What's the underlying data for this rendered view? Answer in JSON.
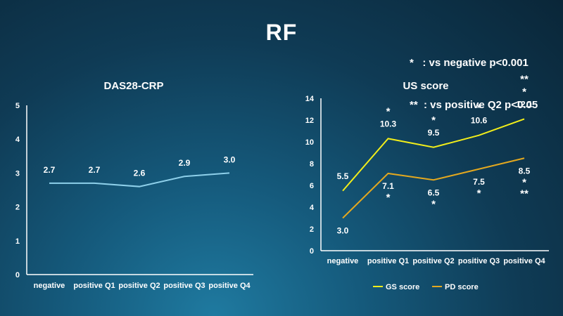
{
  "page_title": "RF",
  "significance_notes": [
    "*   : vs negative p<0.001",
    "**  : vs positive Q2 p<0.05"
  ],
  "chart_data": [
    {
      "type": "line",
      "title": "DAS28-CRP",
      "categories": [
        "negative",
        "positive Q1",
        "positive Q2",
        "positive Q3",
        "positive Q4"
      ],
      "ylim": [
        0,
        5
      ],
      "yticks": [
        0,
        1,
        2,
        3,
        4,
        5
      ],
      "grid": false,
      "series": [
        {
          "values": [
            2.7,
            2.7,
            2.6,
            2.9,
            3.0
          ],
          "labels": [
            "2.7",
            "2.7",
            "2.6",
            "2.9",
            "3.0"
          ],
          "color": "#8ed0ea",
          "markers": [
            "",
            "",
            "",
            "",
            ""
          ]
        }
      ]
    },
    {
      "type": "line",
      "title": "US score",
      "categories": [
        "negative",
        "positive Q1",
        "positive Q2",
        "positive Q3",
        "positive Q4"
      ],
      "ylim": [
        0,
        14
      ],
      "yticks": [
        0,
        2,
        4,
        6,
        8,
        10,
        12,
        14
      ],
      "grid": false,
      "legend_position": "bottom",
      "series": [
        {
          "name": "GS score",
          "values": [
            5.5,
            10.3,
            9.5,
            10.6,
            12.1
          ],
          "labels": [
            "5.5",
            "10.3",
            "9.5",
            "10.6",
            "12.1"
          ],
          "color": "#f2ee1a",
          "markers": [
            "",
            "*",
            "*",
            "*",
            "*"
          ],
          "markers_extra": [
            "",
            "",
            "",
            "",
            "**"
          ]
        },
        {
          "name": "PD score",
          "values": [
            3.0,
            7.1,
            6.5,
            7.5,
            8.5
          ],
          "labels": [
            "3.0",
            "7.1",
            "6.5",
            "7.5",
            "8.5"
          ],
          "color": "#e3a81f",
          "markers": [
            "",
            "*",
            "*",
            "*",
            "*"
          ],
          "markers_extra": [
            "",
            "",
            "",
            "",
            "**"
          ]
        }
      ]
    }
  ]
}
